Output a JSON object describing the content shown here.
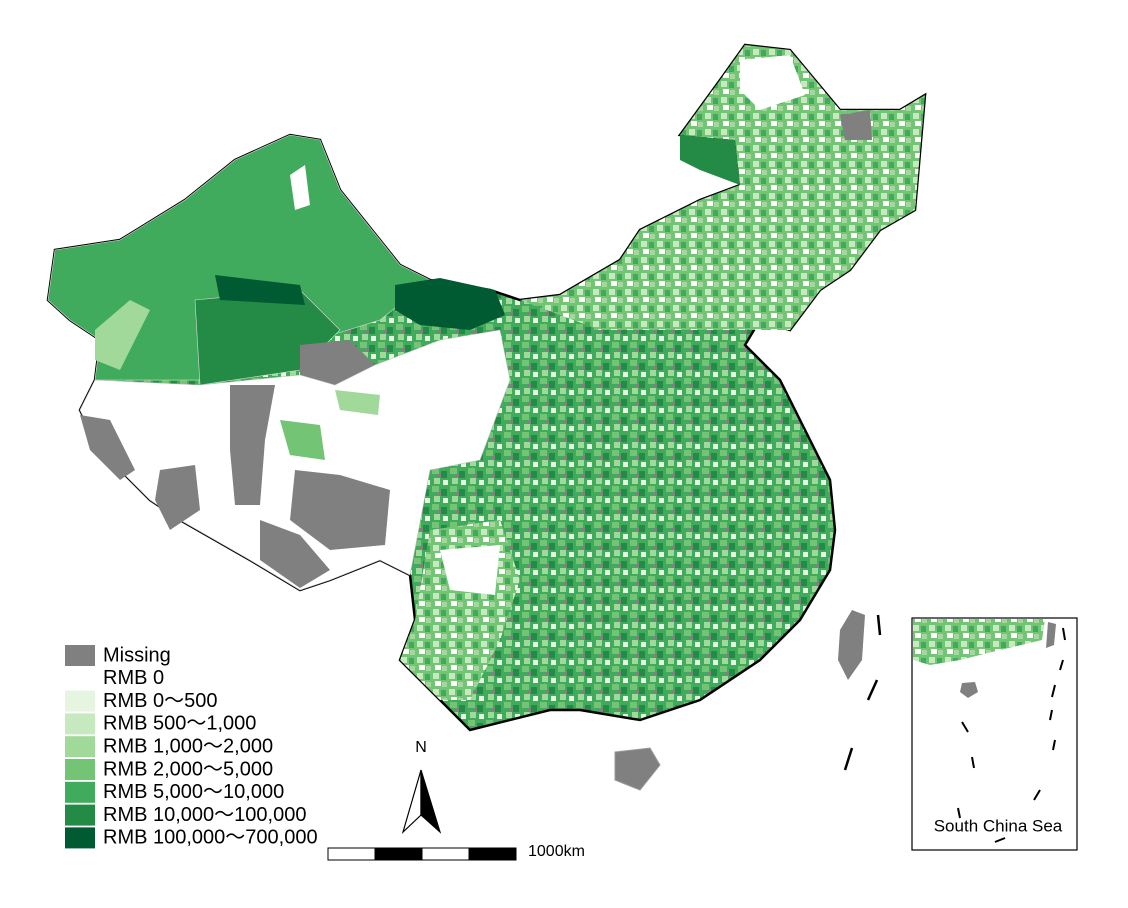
{
  "legend": {
    "items": [
      {
        "label": "Missing",
        "color": "#808080"
      },
      {
        "label": "RMB 0",
        "color": "#ffffff"
      },
      {
        "label": "RMB 0～500",
        "color": "#e5f5e0"
      },
      {
        "label": "RMB 500～1,000",
        "color": "#c7e9c0"
      },
      {
        "label": "RMB 1,000～2,000",
        "color": "#a1d99b"
      },
      {
        "label": "RMB 2,000～5,000",
        "color": "#74c476"
      },
      {
        "label": "RMB 5,000～10,000",
        "color": "#41ab5d"
      },
      {
        "label": "RMB 10,000～100,000",
        "color": "#238b45"
      },
      {
        "label": "RMB 100,000～700,000",
        "color": "#005a32"
      }
    ]
  },
  "north_arrow": {
    "label": "N"
  },
  "scale_bar": {
    "label": "1000km"
  },
  "inset": {
    "label": "South China Sea"
  }
}
